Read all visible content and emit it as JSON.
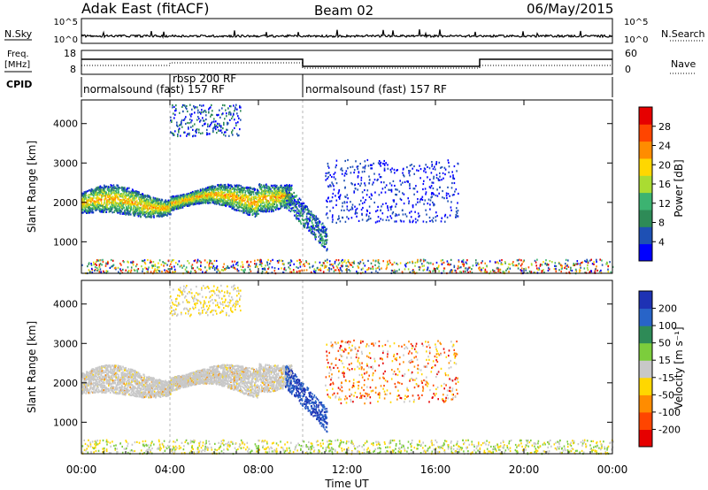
{
  "header": {
    "title": "Adak East (fitACF)",
    "beam": "Beam 02",
    "date": "06/May/2015"
  },
  "summary_panel": {
    "nsky_label": "N.Sky",
    "nsearch_label": "N.Search",
    "freq_label_top": "Freq.",
    "freq_label_unit": "[MHz]",
    "nave_label": "Nave",
    "cpid_label": "CPID",
    "nsky_ticks": [
      "10^5",
      "10^0"
    ],
    "nsearch_ticks": [
      "10^5",
      "10^0"
    ],
    "freq_ticks": [
      "18",
      "8"
    ],
    "nave_ticks": [
      "60",
      "0"
    ],
    "cpid_segments": [
      {
        "label": "normalsound (fast) 157 RF",
        "start_h": 0,
        "end_h": 4.0
      },
      {
        "label": "rbsp 200 RF",
        "start_h": 4.0,
        "end_h": 10.0
      },
      {
        "label": "normalsound (fast) 157 RF",
        "start_h": 10.0,
        "end_h": 24.0
      }
    ]
  },
  "chart_data": [
    {
      "type": "heatmap",
      "name": "power",
      "ylabel": "Slant Range [km]",
      "ylim": [
        200,
        4600
      ],
      "yticks": [
        "1000",
        "2000",
        "3000",
        "4000"
      ],
      "ytick_values": [
        1000,
        2000,
        3000,
        4000
      ],
      "xlim": [
        0,
        24
      ],
      "colorbar": {
        "label": "Power [dB]",
        "tick_labels": [
          "4",
          "8",
          "12",
          "16",
          "20",
          "24",
          "28"
        ],
        "tick_values": [
          4,
          8,
          12,
          16,
          20,
          24,
          28
        ],
        "range": [
          0,
          32
        ],
        "colors": [
          "#0000ff",
          "#1e50b4",
          "#2e8b57",
          "#3cb371",
          "#aadc32",
          "#ffd700",
          "#ff8c00",
          "#ff4500",
          "#e60000"
        ]
      }
    },
    {
      "type": "heatmap",
      "name": "velocity",
      "ylabel": "Slant Range [km]",
      "ylim": [
        200,
        4600
      ],
      "yticks": [
        "1000",
        "2000",
        "3000",
        "4000"
      ],
      "ytick_values": [
        1000,
        2000,
        3000,
        4000
      ],
      "xlim": [
        0,
        24
      ],
      "colorbar": {
        "label": "Velocity [m s⁻¹]",
        "tick_labels": [
          "200",
          "100",
          "50",
          "15",
          "-15",
          "-50",
          "-100",
          "-200"
        ],
        "colors": [
          "#1e32b4",
          "#2864c8",
          "#2e8b57",
          "#7ccd3c",
          "#c8c8c8",
          "#ffd700",
          "#ff8c00",
          "#ff4500",
          "#e60000"
        ]
      }
    }
  ],
  "x_axis": {
    "label": "Time UT",
    "tick_labels": [
      "00:00",
      "04:00",
      "08:00",
      "12:00",
      "16:00",
      "20:00",
      "00:00"
    ],
    "tick_hours": [
      0,
      4,
      8,
      12,
      16,
      20,
      24
    ]
  }
}
